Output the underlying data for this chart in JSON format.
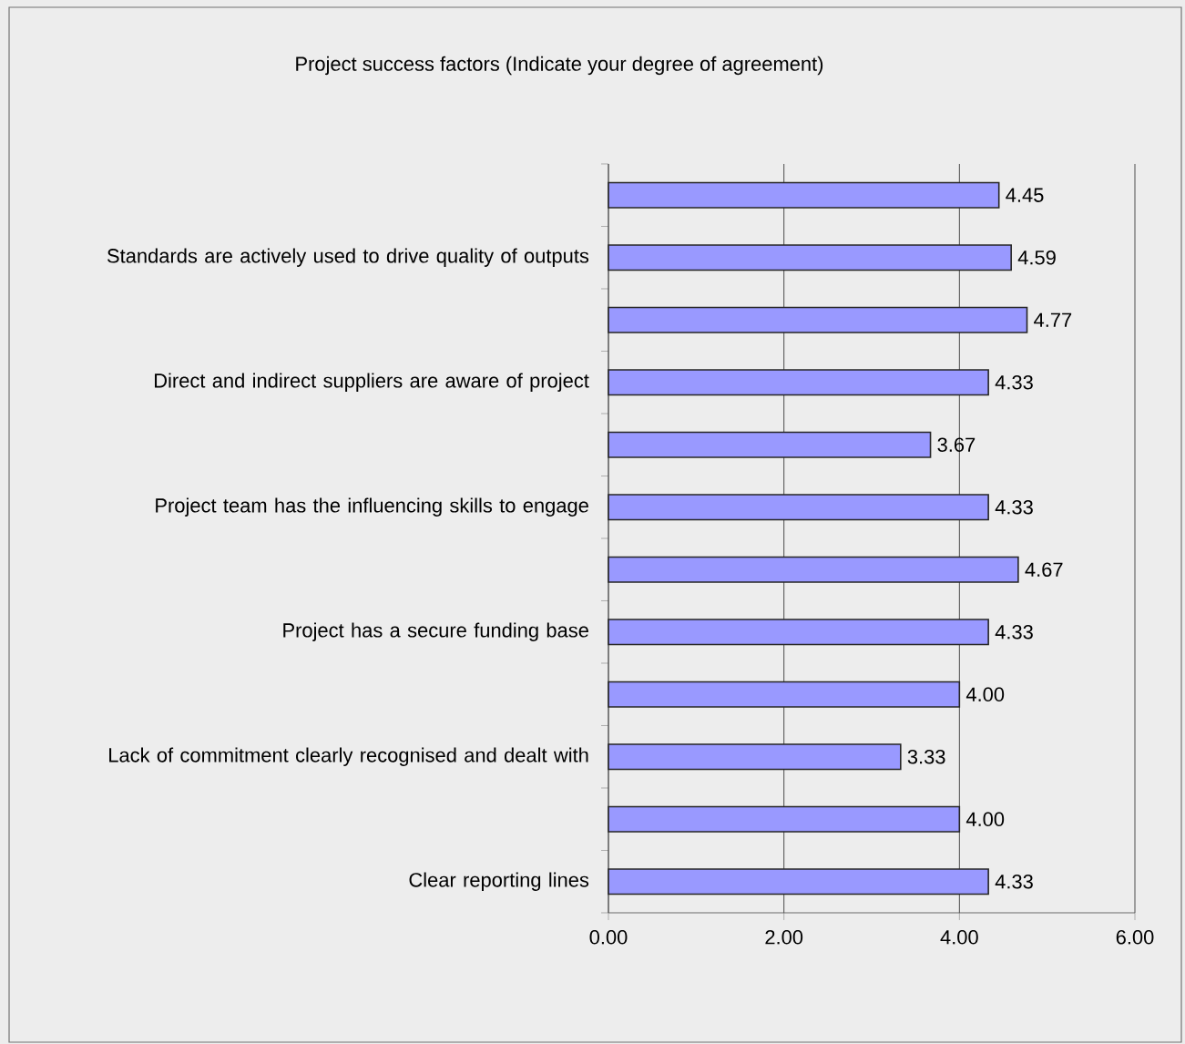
{
  "chart_data": {
    "type": "bar",
    "orientation": "horizontal",
    "title": "Project success factors (Indicate your degree of agreement)",
    "categories": [
      null,
      "Standards are actively used to drive quality of outputs",
      null,
      "Direct and indirect suppliers are aware of project",
      null,
      "Project team has the influencing skills to engage",
      null,
      "Project has a secure funding base",
      null,
      "Lack of commitment clearly recognised and dealt with",
      null,
      "Clear reporting lines"
    ],
    "values": [
      4.45,
      4.59,
      4.77,
      4.33,
      3.67,
      4.33,
      4.67,
      4.33,
      4.0,
      3.33,
      4.0,
      4.33
    ],
    "value_labels": [
      "4.45",
      "4.59",
      "4.77",
      "4.33",
      "3.67",
      "4.33",
      "4.67",
      "4.33",
      "4.00",
      "3.33",
      "4.00",
      "4.33"
    ],
    "color": "#9999ff",
    "xlim": [
      0,
      6
    ],
    "xticks": [
      {
        "value": 0,
        "label": "0.00"
      },
      {
        "value": 2,
        "label": "2.00"
      },
      {
        "value": 4,
        "label": "4.00"
      },
      {
        "value": 6,
        "label": "6.00"
      }
    ],
    "grid": "x"
  }
}
